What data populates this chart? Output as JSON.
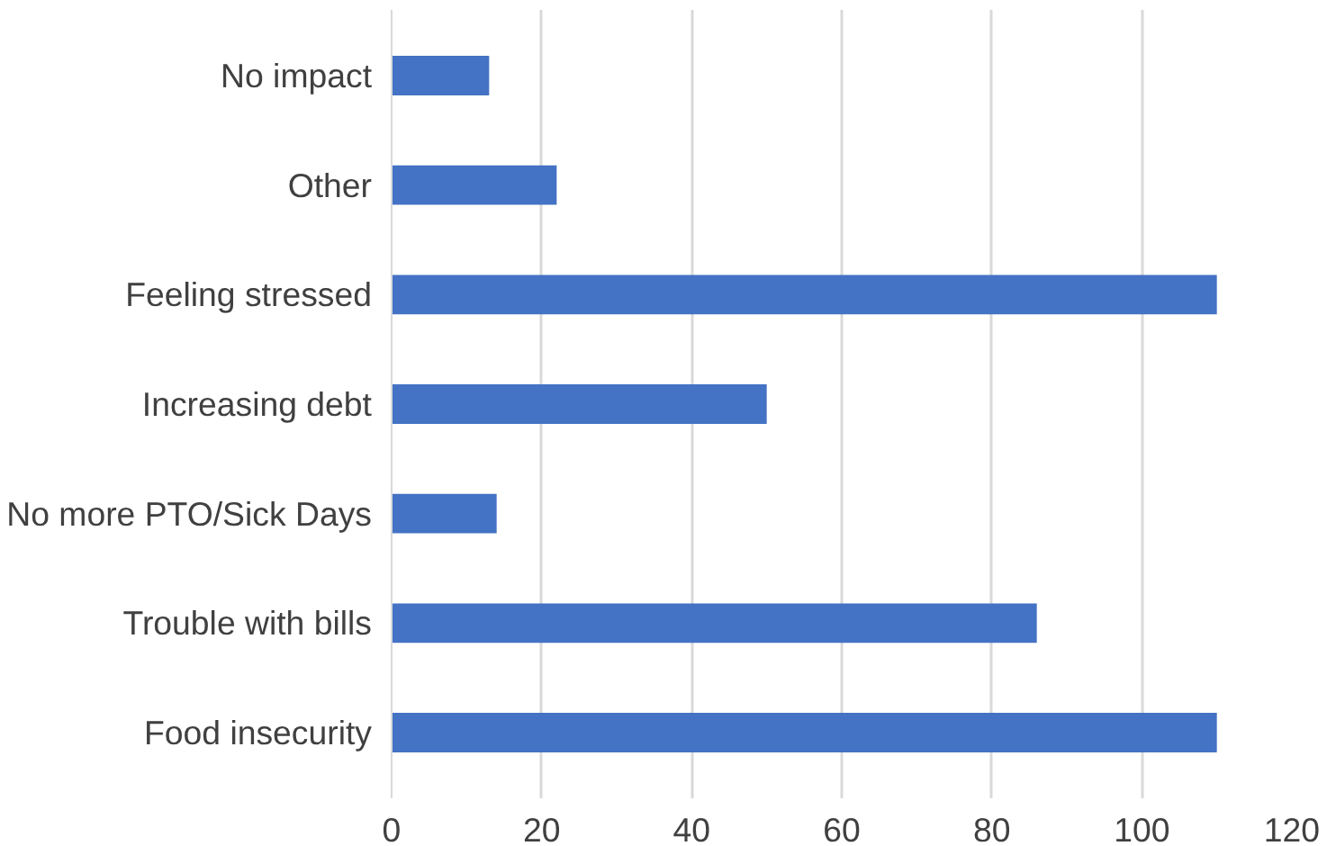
{
  "chart_data": {
    "type": "bar",
    "orientation": "horizontal",
    "categories": [
      "No impact",
      "Other",
      "Feeling stressed",
      "Increasing debt",
      "No more PTO/Sick Days",
      "Trouble with bills",
      "Food insecurity"
    ],
    "values": [
      13,
      22,
      110,
      50,
      14,
      86,
      110
    ],
    "color": "#4472c4",
    "xlim": [
      0,
      120
    ],
    "xticks": [
      0,
      20,
      40,
      60,
      80,
      100,
      120
    ],
    "grid": "x"
  }
}
